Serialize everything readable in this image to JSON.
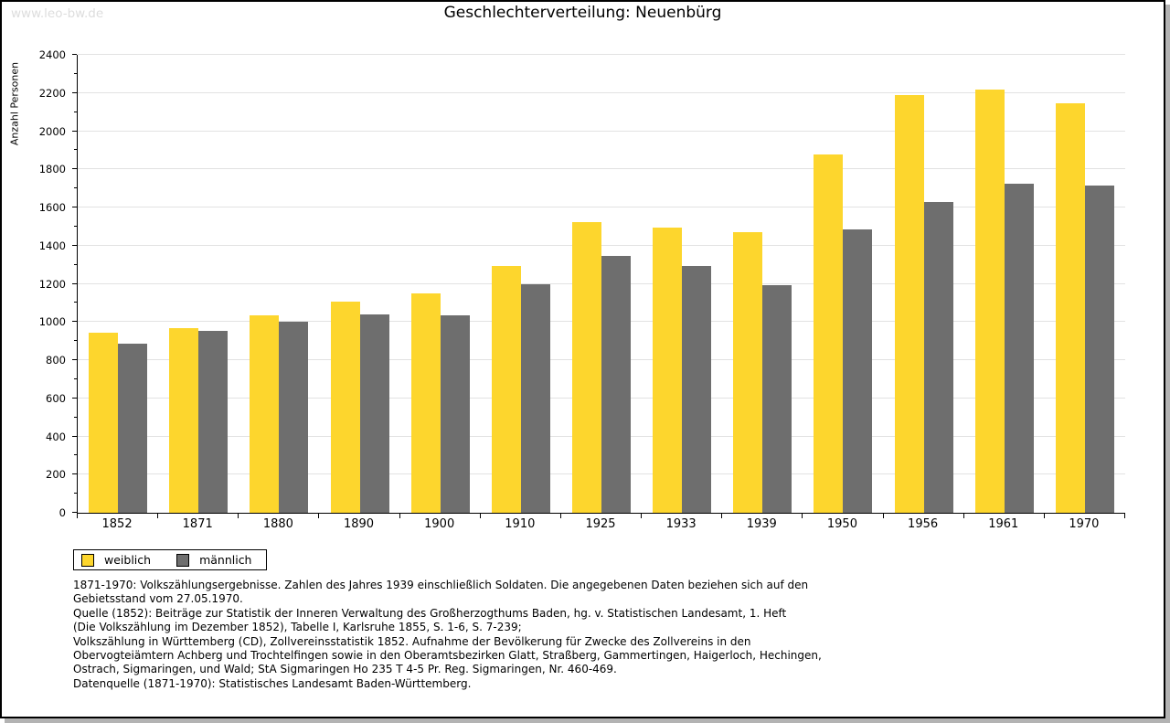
{
  "watermark": "www.leo-bw.de",
  "chart_data": {
    "type": "bar",
    "title": "Geschlechterverteilung: Neuenbürg",
    "xlabel": "",
    "ylabel": "Anzahl Personen",
    "ylim": [
      0,
      2400
    ],
    "ytick_step": 200,
    "yminor_step": 100,
    "grid": true,
    "legend_position": "bottom-left",
    "categories": [
      "1852",
      "1871",
      "1880",
      "1890",
      "1900",
      "1910",
      "1925",
      "1933",
      "1939",
      "1950",
      "1956",
      "1961",
      "1970"
    ],
    "series": [
      {
        "name": "weiblich",
        "color": "#FDD62D",
        "values": [
          945,
          970,
          1035,
          1105,
          1150,
          1295,
          1525,
          1495,
          1470,
          1880,
          2190,
          2220,
          2145
        ]
      },
      {
        "name": "männlich",
        "color": "#6E6E6E",
        "values": [
          885,
          955,
          1000,
          1040,
          1035,
          1200,
          1345,
          1295,
          1195,
          1485,
          1630,
          1725,
          1715
        ]
      }
    ]
  },
  "colors": {
    "weiblich": "#FDD62D",
    "maennlich": "#6E6E6E",
    "gridline": "#E2E2E2",
    "watermark": "#DDDDDD",
    "frame_shadow": "#B3B3B3"
  },
  "footnotes": {
    "lines": [
      "1871-1970: Volkszählungsergebnisse. Zahlen des Jahres 1939 einschließlich Soldaten. Die angegebenen Daten beziehen sich auf den",
      "Gebietsstand vom 27.05.1970.",
      "Quelle (1852): Beiträge zur Statistik der Inneren Verwaltung des Großherzogthums Baden, hg. v. Statistischen Landesamt, 1. Heft",
      "(Die Volkszählung im Dezember 1852), Tabelle I, Karlsruhe 1855, S. 1-6, S. 7-239;",
      "Volkszählung in Württemberg (CD), Zollvereinsstatistik 1852. Aufnahme der Bevölkerung für Zwecke des Zollvereins in den",
      "Obervogteiämtern Achberg und Trochtelfingen sowie in den Oberamtsbezirken Glatt, Straßberg, Gammertingen, Haigerloch, Hechingen,",
      "Ostrach, Sigmaringen, und Wald; StA Sigmaringen Ho 235 T 4-5 Pr. Reg. Sigmaringen, Nr. 460-469."
    ],
    "source": "Datenquelle (1871-1970): Statistisches Landesamt Baden-Württemberg."
  }
}
